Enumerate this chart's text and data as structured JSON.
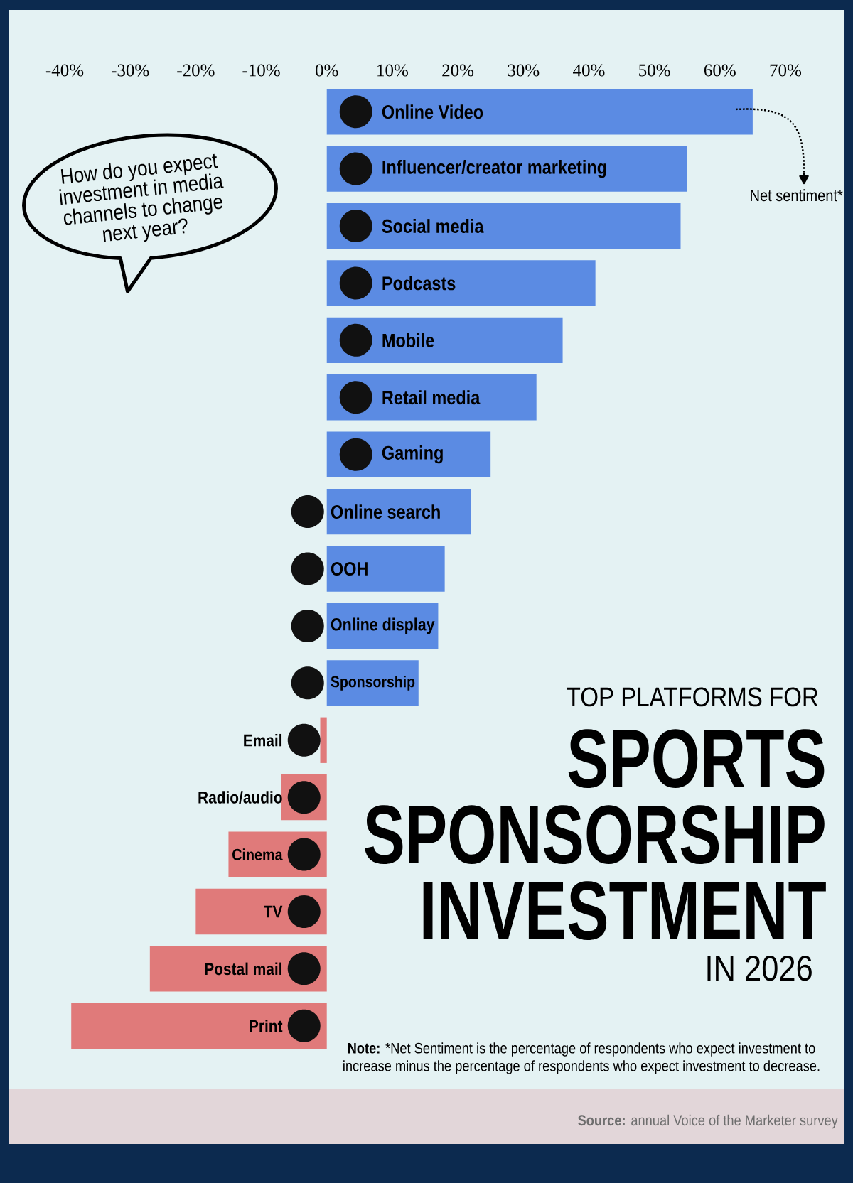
{
  "chart_data": {
    "type": "bar",
    "orientation": "horizontal",
    "title": "SPORTS SPONSORSHIP INVESTMENT",
    "categories": [
      "Online Video",
      "Influencer/creator marketing",
      "Social media",
      "Podcasts",
      "Mobile",
      "Retail media",
      "Gaming",
      "Online search",
      "OOH",
      "Online display",
      "Sponsorship",
      "Email",
      "Radio/audio",
      "Cinema",
      "TV",
      "Postal mail",
      "Print"
    ],
    "values": [
      65,
      55,
      54,
      41,
      36,
      32,
      25,
      22,
      18,
      17,
      14,
      -1,
      -7,
      -15,
      -20,
      -27,
      -39
    ],
    "colors": [
      "#5b8be3",
      "#5b8be3",
      "#5b8be3",
      "#5b8be3",
      "#5b8be3",
      "#5b8be3",
      "#5b8be3",
      "#5b8be3",
      "#5b8be3",
      "#5b8be3",
      "#5b8be3",
      "#e07a7a",
      "#e07a7a",
      "#e07a7a",
      "#e07a7a",
      "#e07a7a",
      "#e07a7a"
    ],
    "xlim": [
      -40,
      70
    ],
    "xticks": [
      {
        "value": -40,
        "label": "-40%"
      },
      {
        "value": -30,
        "label": "-30%"
      },
      {
        "value": -20,
        "label": "-20%"
      },
      {
        "value": -10,
        "label": "-10%"
      },
      {
        "value": 0,
        "label": "0%"
      },
      {
        "value": 10,
        "label": "10%"
      },
      {
        "value": 20,
        "label": "20%"
      },
      {
        "value": 30,
        "label": "30%"
      },
      {
        "value": 40,
        "label": "40%"
      },
      {
        "value": 50,
        "label": "50%"
      },
      {
        "value": 60,
        "label": "60%"
      },
      {
        "value": 70,
        "label": "70%"
      }
    ],
    "annotations": [
      "How do you expect investment in media channels to change next year?",
      "Net sentiment*",
      "TOP PLATFORMS FOR",
      "IN 2026",
      "**Note:** *Net Sentiment is the percentage of respondents who expect investment to increase minus the percentage of respondents who expect investment to decrease.",
      "**Source:** annual Voice of the Marketer survey"
    ]
  }
}
